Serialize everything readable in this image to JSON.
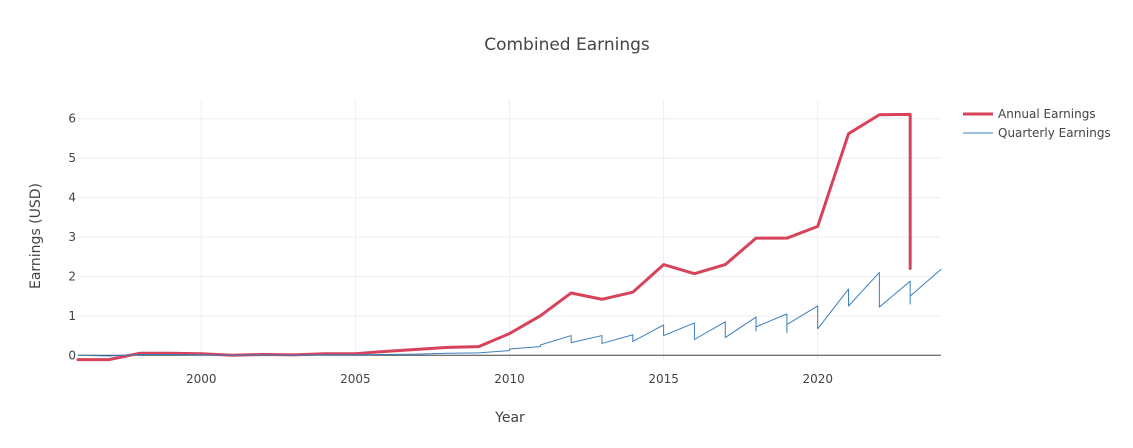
{
  "chart_data": {
    "type": "line",
    "title": "Combined Earnings",
    "xlabel": "Year",
    "ylabel": "Earnings (USD)",
    "xlim": [
      1996,
      2024
    ],
    "ylim": [
      -0.12,
      6.5
    ],
    "xticks": [
      2000,
      2005,
      2010,
      2015,
      2020
    ],
    "yticks": [
      0,
      1,
      2,
      3,
      4,
      5,
      6
    ],
    "grid": true,
    "legend_position": "top-right",
    "series": [
      {
        "name": "Annual Earnings",
        "color": "#d6435a",
        "width": 3,
        "x": [
          1996,
          1997,
          1998,
          1999,
          2000,
          2001,
          2002,
          2003,
          2004,
          2005,
          2006,
          2007,
          2008,
          2009,
          2010,
          2011,
          2012,
          2013,
          2014,
          2015,
          2016,
          2017,
          2018,
          2019,
          2020,
          2021,
          2022,
          2023,
          2023
        ],
        "y": [
          -0.11,
          -0.11,
          0.05,
          0.05,
          0.04,
          0.0,
          0.02,
          0.01,
          0.04,
          0.04,
          0.1,
          0.15,
          0.2,
          0.22,
          0.55,
          1.0,
          1.58,
          1.42,
          1.6,
          2.3,
          2.07,
          2.3,
          2.97,
          2.97,
          3.27,
          5.62,
          6.1,
          6.11,
          2.2
        ]
      },
      {
        "name": "Quarterly Earnings",
        "color": "#3a7ebf",
        "width": 1,
        "x": [
          1996,
          1997,
          1998,
          1999,
          2000,
          2001,
          2002,
          2003,
          2004,
          2005,
          2006,
          2007,
          2008,
          2009,
          2010,
          2010,
          2011,
          2011,
          2012,
          2012,
          2013,
          2013,
          2014,
          2014,
          2015,
          2015,
          2016,
          2016,
          2017,
          2017,
          2018,
          2018,
          2018,
          2018,
          2019,
          2019,
          2019,
          2019,
          2020,
          2020,
          2021,
          2021,
          2022,
          2022,
          2023,
          2023,
          2023,
          2023,
          2024
        ],
        "y": [
          0.0,
          -0.02,
          0.02,
          0.02,
          0.01,
          0.0,
          0.01,
          0.0,
          0.01,
          0.01,
          0.02,
          0.03,
          0.05,
          0.06,
          0.12,
          0.16,
          0.22,
          0.26,
          0.5,
          0.32,
          0.5,
          0.3,
          0.52,
          0.35,
          0.77,
          0.5,
          0.82,
          0.4,
          0.85,
          0.45,
          0.97,
          0.62,
          0.9,
          0.72,
          1.05,
          0.57,
          0.95,
          0.78,
          1.25,
          0.67,
          1.68,
          1.25,
          2.1,
          1.22,
          1.88,
          1.3,
          1.7,
          1.5,
          2.18
        ]
      }
    ]
  }
}
